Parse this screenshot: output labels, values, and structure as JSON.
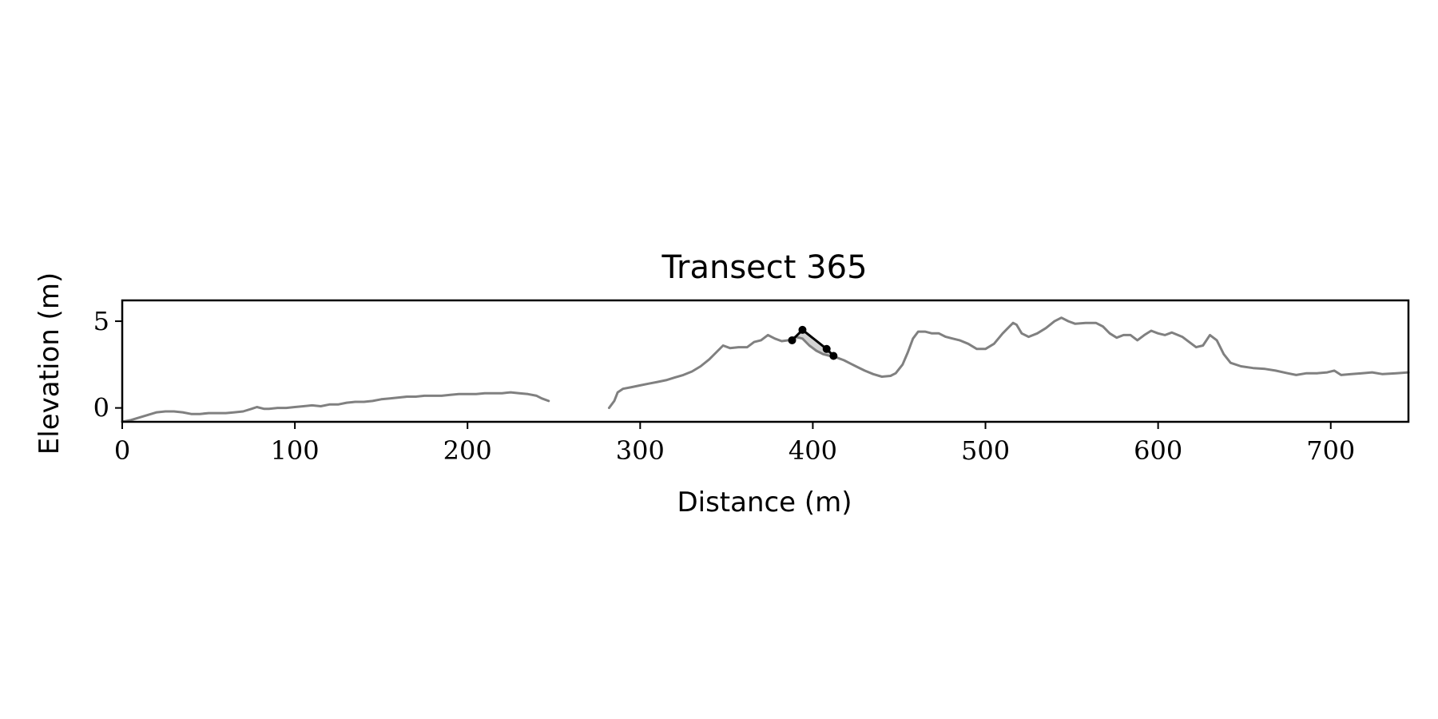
{
  "chart_data": {
    "type": "line",
    "title": "Transect 365",
    "xlabel": "Distance (m)",
    "ylabel": "Elevation (m)",
    "xlim": [
      0,
      745
    ],
    "ylim": [
      -0.8,
      6.2
    ],
    "xticks": [
      0,
      100,
      200,
      300,
      400,
      500,
      600,
      700
    ],
    "yticks": [
      0,
      5
    ],
    "xtick_labels": [
      "0",
      "100",
      "200",
      "300",
      "400",
      "500",
      "600",
      "700"
    ],
    "ytick_labels": [
      "0",
      "5"
    ],
    "grid": false,
    "colors": {
      "profile": "#808080",
      "dune": "#000000",
      "dune_fill": "#d3d3d3"
    },
    "series": [
      {
        "segments": [
          [
            [
              0,
              -0.8
            ],
            [
              5,
              -0.7
            ],
            [
              10,
              -0.55
            ],
            [
              15,
              -0.4
            ],
            [
              20,
              -0.25
            ],
            [
              25,
              -0.2
            ],
            [
              30,
              -0.2
            ],
            [
              35,
              -0.25
            ],
            [
              40,
              -0.35
            ],
            [
              45,
              -0.35
            ],
            [
              50,
              -0.3
            ],
            [
              55,
              -0.3
            ],
            [
              60,
              -0.3
            ],
            [
              65,
              -0.25
            ],
            [
              70,
              -0.2
            ],
            [
              75,
              -0.05
            ],
            [
              78,
              0.05
            ],
            [
              82,
              -0.05
            ],
            [
              85,
              -0.05
            ],
            [
              90,
              0.0
            ],
            [
              95,
              0.0
            ],
            [
              100,
              0.05
            ],
            [
              105,
              0.1
            ],
            [
              110,
              0.15
            ],
            [
              115,
              0.1
            ],
            [
              120,
              0.2
            ],
            [
              125,
              0.2
            ],
            [
              130,
              0.3
            ],
            [
              135,
              0.35
            ],
            [
              140,
              0.35
            ],
            [
              145,
              0.4
            ],
            [
              150,
              0.5
            ],
            [
              155,
              0.55
            ],
            [
              160,
              0.6
            ],
            [
              165,
              0.65
            ],
            [
              170,
              0.65
            ],
            [
              175,
              0.7
            ],
            [
              180,
              0.7
            ],
            [
              185,
              0.7
            ],
            [
              190,
              0.75
            ],
            [
              195,
              0.8
            ],
            [
              200,
              0.8
            ],
            [
              205,
              0.8
            ],
            [
              210,
              0.85
            ],
            [
              215,
              0.85
            ],
            [
              220,
              0.85
            ],
            [
              225,
              0.9
            ],
            [
              230,
              0.85
            ],
            [
              235,
              0.8
            ],
            [
              240,
              0.7
            ],
            [
              243,
              0.55
            ],
            [
              247,
              0.4
            ]
          ],
          [
            [
              282,
              0.0
            ],
            [
              285,
              0.4
            ],
            [
              287,
              0.9
            ],
            [
              290,
              1.1
            ],
            [
              295,
              1.2
            ],
            [
              300,
              1.3
            ],
            [
              305,
              1.4
            ],
            [
              310,
              1.5
            ],
            [
              315,
              1.6
            ],
            [
              320,
              1.75
            ],
            [
              325,
              1.9
            ],
            [
              330,
              2.1
            ],
            [
              335,
              2.4
            ],
            [
              340,
              2.8
            ],
            [
              345,
              3.3
            ],
            [
              348,
              3.6
            ],
            [
              352,
              3.45
            ],
            [
              357,
              3.5
            ],
            [
              362,
              3.5
            ],
            [
              366,
              3.8
            ],
            [
              370,
              3.9
            ],
            [
              374,
              4.2
            ],
            [
              378,
              4.0
            ],
            [
              382,
              3.85
            ],
            [
              386,
              3.9
            ],
            [
              390,
              4.1
            ],
            [
              394,
              4.0
            ],
            [
              398,
              3.6
            ],
            [
              402,
              3.3
            ],
            [
              406,
              3.1
            ],
            [
              410,
              3.0
            ],
            [
              414,
              2.9
            ],
            [
              418,
              2.75
            ],
            [
              422,
              2.55
            ],
            [
              426,
              2.35
            ],
            [
              430,
              2.15
            ],
            [
              435,
              1.95
            ],
            [
              440,
              1.8
            ],
            [
              445,
              1.85
            ],
            [
              448,
              2.0
            ],
            [
              452,
              2.5
            ],
            [
              455,
              3.2
            ],
            [
              458,
              4.0
            ],
            [
              461,
              4.4
            ],
            [
              465,
              4.4
            ],
            [
              469,
              4.3
            ],
            [
              473,
              4.3
            ],
            [
              477,
              4.1
            ],
            [
              481,
              4.0
            ],
            [
              485,
              3.9
            ],
            [
              490,
              3.7
            ],
            [
              495,
              3.4
            ],
            [
              500,
              3.4
            ],
            [
              505,
              3.7
            ],
            [
              510,
              4.3
            ],
            [
              513,
              4.6
            ],
            [
              516,
              4.9
            ],
            [
              518,
              4.8
            ],
            [
              521,
              4.3
            ],
            [
              525,
              4.1
            ],
            [
              530,
              4.3
            ],
            [
              535,
              4.6
            ],
            [
              540,
              5.0
            ],
            [
              544,
              5.2
            ],
            [
              548,
              5.0
            ],
            [
              552,
              4.85
            ],
            [
              558,
              4.9
            ],
            [
              564,
              4.9
            ],
            [
              568,
              4.7
            ],
            [
              572,
              4.3
            ],
            [
              576,
              4.05
            ],
            [
              580,
              4.2
            ],
            [
              584,
              4.2
            ],
            [
              588,
              3.9
            ],
            [
              592,
              4.2
            ],
            [
              596,
              4.45
            ],
            [
              600,
              4.3
            ],
            [
              604,
              4.2
            ],
            [
              608,
              4.35
            ],
            [
              614,
              4.1
            ],
            [
              618,
              3.8
            ],
            [
              622,
              3.5
            ],
            [
              626,
              3.6
            ],
            [
              630,
              4.2
            ],
            [
              634,
              3.9
            ],
            [
              638,
              3.1
            ],
            [
              642,
              2.6
            ],
            [
              648,
              2.4
            ],
            [
              655,
              2.3
            ],
            [
              662,
              2.25
            ],
            [
              668,
              2.15
            ],
            [
              675,
              2.0
            ],
            [
              680,
              1.9
            ],
            [
              686,
              2.0
            ],
            [
              692,
              2.0
            ],
            [
              698,
              2.05
            ],
            [
              702,
              2.15
            ],
            [
              706,
              1.9
            ],
            [
              712,
              1.95
            ],
            [
              718,
              2.0
            ],
            [
              724,
              2.05
            ],
            [
              730,
              1.95
            ],
            [
              738,
              2.0
            ],
            [
              745,
              2.05
            ]
          ]
        ]
      },
      {
        "points": [
          [
            388,
            3.9
          ],
          [
            394,
            4.5
          ],
          [
            408,
            3.4
          ],
          [
            412,
            3.0
          ]
        ]
      }
    ],
    "shaded_region": {
      "upper": [
        [
          388,
          3.9
        ],
        [
          394,
          4.5
        ],
        [
          408,
          3.4
        ],
        [
          412,
          3.0
        ]
      ],
      "lower": [
        [
          388,
          3.9
        ],
        [
          394,
          4.0
        ],
        [
          398,
          3.6
        ],
        [
          402,
          3.3
        ],
        [
          406,
          3.1
        ],
        [
          410,
          3.0
        ],
        [
          412,
          3.0
        ]
      ]
    }
  }
}
